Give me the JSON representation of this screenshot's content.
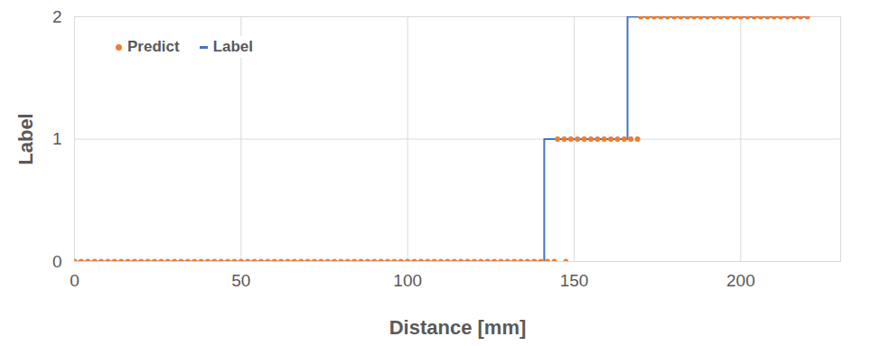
{
  "chart_data": {
    "type": "line",
    "xlabel": "Distance [mm]",
    "ylabel": "Label",
    "xlim": [
      0,
      230
    ],
    "xticks": [
      0,
      50,
      100,
      150,
      200
    ],
    "ylim": [
      0,
      2
    ],
    "yticks": [
      0,
      1,
      2
    ],
    "grid": true,
    "legend": "upper left",
    "series": [
      {
        "name": "Predict",
        "type": "scatter",
        "marker": "circle",
        "color": "#ED7D31",
        "x": [
          0,
          2,
          4,
          6,
          8,
          10,
          12,
          14,
          16,
          18,
          20,
          22,
          24,
          26,
          28,
          30,
          32,
          34,
          36,
          38,
          40,
          42,
          44,
          46,
          48,
          50,
          52,
          54,
          56,
          58,
          60,
          62,
          64,
          66,
          68,
          70,
          72,
          74,
          76,
          78,
          80,
          82,
          84,
          86,
          88,
          90,
          92,
          94,
          96,
          98,
          100,
          102,
          104,
          106,
          108,
          110,
          112,
          114,
          116,
          118,
          120,
          122,
          124,
          126,
          128,
          130,
          132,
          134,
          136,
          138,
          140,
          142,
          144,
          147.5,
          145,
          147,
          149,
          151,
          153,
          155,
          157,
          159,
          161,
          163,
          165,
          167,
          169,
          170,
          172,
          174,
          176,
          178,
          180,
          182,
          184,
          186,
          188,
          190,
          192,
          194,
          196,
          198,
          200,
          202,
          204,
          206,
          208,
          210,
          212,
          214,
          216,
          218,
          220
        ],
        "values": [
          0,
          0,
          0,
          0,
          0,
          0,
          0,
          0,
          0,
          0,
          0,
          0,
          0,
          0,
          0,
          0,
          0,
          0,
          0,
          0,
          0,
          0,
          0,
          0,
          0,
          0,
          0,
          0,
          0,
          0,
          0,
          0,
          0,
          0,
          0,
          0,
          0,
          0,
          0,
          0,
          0,
          0,
          0,
          0,
          0,
          0,
          0,
          0,
          0,
          0,
          0,
          0,
          0,
          0,
          0,
          0,
          0,
          0,
          0,
          0,
          0,
          0,
          0,
          0,
          0,
          0,
          0,
          0,
          0,
          0,
          0,
          0,
          0,
          0,
          1,
          1,
          1,
          1,
          1,
          1,
          1,
          1,
          1,
          1,
          1,
          1,
          1,
          2,
          2,
          2,
          2,
          2,
          2,
          2,
          2,
          2,
          2,
          2,
          2,
          2,
          2,
          2,
          2,
          2,
          2,
          2,
          2,
          2,
          2,
          2,
          2,
          2,
          2
        ]
      },
      {
        "name": "Label",
        "type": "line",
        "line_style": "solid",
        "color": "#4472C4",
        "x": [
          0,
          141,
          141,
          166,
          166,
          220
        ],
        "values": [
          0,
          0,
          1,
          1,
          2,
          2
        ]
      }
    ]
  }
}
